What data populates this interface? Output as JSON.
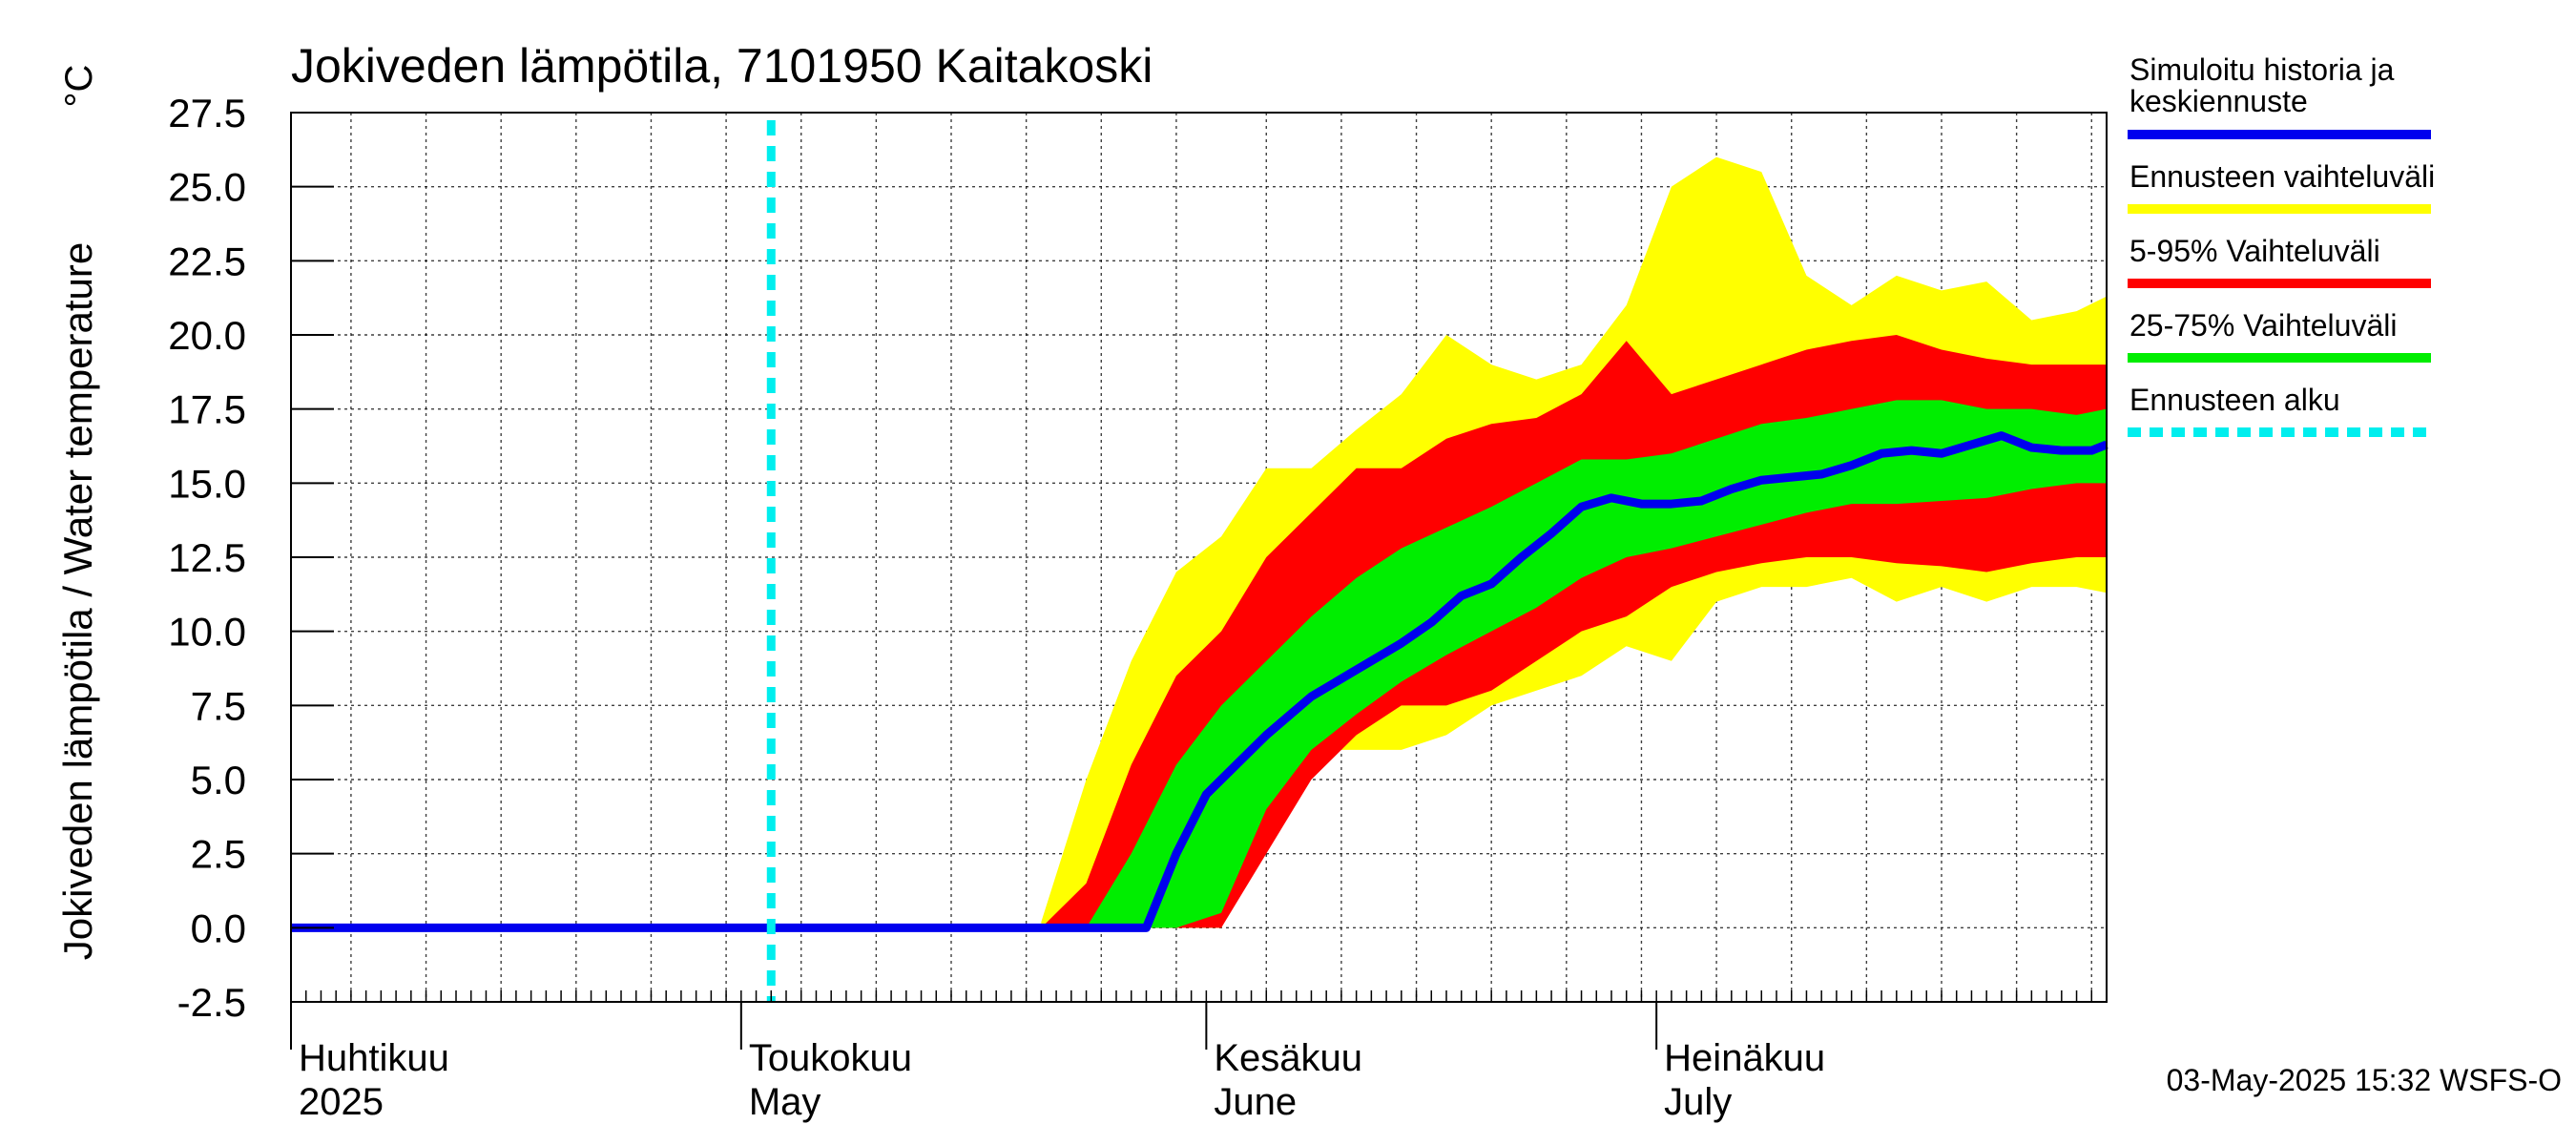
{
  "chart_data": {
    "type": "area",
    "title": "Jokiveden lämpötila, 7101950 Kaitakoski",
    "unit": "°C",
    "ylabel": "Jokiveden lämpötila / Water temperature",
    "ylim": [
      -2.5,
      27.5
    ],
    "yticks": [
      "-2.5",
      "0.0",
      "2.5",
      "5.0",
      "7.5",
      "10.0",
      "12.5",
      "15.0",
      "17.5",
      "20.0",
      "22.5",
      "25.0",
      "27.5"
    ],
    "x_start": "2025-04-01",
    "x_end": "2025-07-31",
    "months": [
      {
        "date": "2025-04-01",
        "fi": "Huhtikuu",
        "en": "2025"
      },
      {
        "date": "2025-05-01",
        "fi": "Toukokuu",
        "en": "May"
      },
      {
        "date": "2025-06-01",
        "fi": "Kesäkuu",
        "en": "June"
      },
      {
        "date": "2025-07-01",
        "fi": "Heinäkuu",
        "en": "July"
      }
    ],
    "forecast_start": "2025-05-03",
    "grid": true,
    "legend_position": "right",
    "series": [
      {
        "name": "Simuloitu historia ja keskiennuste",
        "color": "#0000ee",
        "x": [
          "2025-04-01",
          "2025-05-03",
          "2025-05-28",
          "2025-05-30",
          "2025-06-01",
          "2025-06-03",
          "2025-06-05",
          "2025-06-08",
          "2025-06-11",
          "2025-06-14",
          "2025-06-16",
          "2025-06-18",
          "2025-06-20",
          "2025-06-22",
          "2025-06-24",
          "2025-06-26",
          "2025-06-28",
          "2025-06-30",
          "2025-07-02",
          "2025-07-04",
          "2025-07-06",
          "2025-07-08",
          "2025-07-10",
          "2025-07-12",
          "2025-07-14",
          "2025-07-16",
          "2025-07-18",
          "2025-07-20",
          "2025-07-22",
          "2025-07-24",
          "2025-07-26",
          "2025-07-28",
          "2025-07-30",
          "2025-07-31"
        ],
        "values": [
          0,
          0,
          0,
          2.5,
          4.5,
          5.5,
          6.5,
          7.8,
          8.7,
          9.6,
          10.3,
          11.2,
          11.6,
          12.5,
          13.3,
          14.2,
          14.5,
          14.3,
          14.3,
          14.4,
          14.8,
          15.1,
          15.2,
          15.3,
          15.6,
          16.0,
          16.1,
          16.0,
          16.3,
          16.6,
          16.2,
          16.1,
          16.1,
          16.3
        ]
      }
    ],
    "bands": [
      {
        "name": "Ennusteen vaihteluväli",
        "color": "#ffff00",
        "x": [
          "2025-05-21",
          "2025-05-24",
          "2025-05-27",
          "2025-05-30",
          "2025-06-02",
          "2025-06-05",
          "2025-06-08",
          "2025-06-11",
          "2025-06-14",
          "2025-06-17",
          "2025-06-20",
          "2025-06-23",
          "2025-06-26",
          "2025-06-29",
          "2025-07-02",
          "2025-07-05",
          "2025-07-08",
          "2025-07-11",
          "2025-07-14",
          "2025-07-17",
          "2025-07-20",
          "2025-07-23",
          "2025-07-26",
          "2025-07-29",
          "2025-07-31"
        ],
        "upper": [
          0.2,
          5.0,
          9.0,
          12.0,
          13.2,
          15.5,
          15.5,
          16.8,
          18.0,
          20.0,
          19.0,
          18.5,
          19.0,
          21.0,
          25.0,
          26.0,
          25.5,
          22.0,
          21.0,
          22.0,
          21.5,
          21.8,
          20.5,
          20.8,
          21.3
        ],
        "lower": [
          0,
          0,
          0,
          0,
          0,
          3.0,
          6.0,
          6.0,
          6.0,
          6.5,
          7.5,
          8.0,
          8.5,
          9.5,
          9.0,
          11.0,
          11.5,
          11.5,
          11.8,
          11.0,
          11.5,
          11.0,
          11.5,
          11.5,
          11.3
        ]
      },
      {
        "name": "5-95% Vaihteluväli",
        "color": "#ff0000",
        "x": [
          "2025-05-21",
          "2025-05-24",
          "2025-05-27",
          "2025-05-30",
          "2025-06-02",
          "2025-06-05",
          "2025-06-08",
          "2025-06-11",
          "2025-06-14",
          "2025-06-17",
          "2025-06-20",
          "2025-06-23",
          "2025-06-26",
          "2025-06-29",
          "2025-07-02",
          "2025-07-05",
          "2025-07-08",
          "2025-07-11",
          "2025-07-14",
          "2025-07-17",
          "2025-07-20",
          "2025-07-23",
          "2025-07-26",
          "2025-07-29",
          "2025-07-31"
        ],
        "upper": [
          0,
          1.5,
          5.5,
          8.5,
          10.0,
          12.5,
          14.0,
          15.5,
          15.5,
          16.5,
          17.0,
          17.2,
          18.0,
          19.8,
          18.0,
          18.5,
          19.0,
          19.5,
          19.8,
          20.0,
          19.5,
          19.2,
          19.0,
          19.0,
          19.0
        ],
        "lower": [
          0,
          0,
          0,
          0,
          0,
          2.5,
          5.0,
          6.5,
          7.5,
          7.5,
          8.0,
          9.0,
          10.0,
          10.5,
          11.5,
          12.0,
          12.3,
          12.5,
          12.5,
          12.3,
          12.2,
          12.0,
          12.3,
          12.5,
          12.5
        ]
      },
      {
        "name": "25-75% Vaihteluväli",
        "color": "#00ee00",
        "x": [
          "2025-05-21",
          "2025-05-24",
          "2025-05-27",
          "2025-05-30",
          "2025-06-02",
          "2025-06-05",
          "2025-06-08",
          "2025-06-11",
          "2025-06-14",
          "2025-06-17",
          "2025-06-20",
          "2025-06-23",
          "2025-06-26",
          "2025-06-29",
          "2025-07-02",
          "2025-07-05",
          "2025-07-08",
          "2025-07-11",
          "2025-07-14",
          "2025-07-17",
          "2025-07-20",
          "2025-07-23",
          "2025-07-26",
          "2025-07-29",
          "2025-07-31"
        ],
        "upper": [
          0,
          0,
          2.5,
          5.5,
          7.5,
          9.0,
          10.5,
          11.8,
          12.8,
          13.5,
          14.2,
          15.0,
          15.8,
          15.8,
          16.0,
          16.5,
          17.0,
          17.2,
          17.5,
          17.8,
          17.8,
          17.5,
          17.5,
          17.3,
          17.5
        ],
        "lower": [
          0,
          0,
          0,
          0,
          0.5,
          4.0,
          6.0,
          7.2,
          8.3,
          9.2,
          10.0,
          10.8,
          11.8,
          12.5,
          12.8,
          13.2,
          13.6,
          14.0,
          14.3,
          14.3,
          14.4,
          14.5,
          14.8,
          15.0,
          15.0
        ]
      }
    ],
    "legend": [
      {
        "label": "Simuloitu historia ja keskiennuste",
        "color": "#0000ee",
        "style": "solid"
      },
      {
        "label": "Ennusteen vaihteluväli",
        "color": "#ffff00",
        "style": "solid"
      },
      {
        "label": "5-95% Vaihteluväli",
        "color": "#ff0000",
        "style": "solid"
      },
      {
        "label": "25-75% Vaihteluväli",
        "color": "#00ee00",
        "style": "solid"
      },
      {
        "label": "Ennusteen alku",
        "color": "#00eeee",
        "style": "dashed"
      }
    ],
    "footer": "03-May-2025 15:32 WSFS-O"
  }
}
